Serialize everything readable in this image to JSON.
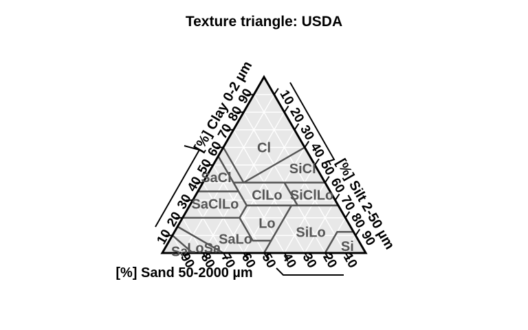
{
  "chart_data": {
    "type": "ternary",
    "title": "Texture triangle: USDA",
    "axes": {
      "clay": {
        "label": "[%] Clay 0-2 µm",
        "ticks": [
          "10",
          "20",
          "30",
          "40",
          "50",
          "60",
          "70",
          "80",
          "90"
        ]
      },
      "silt": {
        "label": "[%] Silt 2-50 µm",
        "ticks": [
          "10",
          "20",
          "30",
          "40",
          "50",
          "60",
          "70",
          "80",
          "90"
        ]
      },
      "sand": {
        "label": "[%] Sand 50-2000 µm",
        "ticks": [
          "10",
          "20",
          "30",
          "40",
          "50",
          "60",
          "70",
          "80",
          "90"
        ]
      }
    },
    "grid": true,
    "grid_step": 10,
    "classes": [
      {
        "label": "Cl",
        "polygon": [
          [
            100,
            0,
            0
          ],
          [
            55,
            45,
            0
          ],
          [
            40,
            45,
            15
          ],
          [
            40,
            40,
            20
          ],
          [
            60,
            40,
            0
          ]
        ]
      },
      {
        "label": "SiCl",
        "polygon": [
          [
            60,
            0,
            40
          ],
          [
            40,
            0,
            60
          ],
          [
            40,
            40,
            20
          ]
        ]
      },
      {
        "label": "SaCl",
        "polygon": [
          [
            55,
            45,
            0
          ],
          [
            35,
            65,
            0
          ],
          [
            35,
            45,
            20
          ]
        ]
      },
      {
        "label": "SiClLo",
        "polygon": [
          [
            40,
            0,
            60
          ],
          [
            27,
            0,
            73
          ],
          [
            27,
            20,
            53
          ],
          [
            40,
            20,
            40
          ]
        ]
      },
      {
        "label": "ClLo",
        "polygon": [
          [
            40,
            20,
            40
          ],
          [
            27,
            20,
            53
          ],
          [
            27,
            45,
            28
          ],
          [
            40,
            45,
            15
          ]
        ]
      },
      {
        "label": "SaClLo",
        "polygon": [
          [
            35,
            65,
            0
          ],
          [
            20,
            80,
            0
          ],
          [
            20,
            52,
            28
          ],
          [
            27,
            45,
            28
          ],
          [
            35,
            45,
            20
          ]
        ]
      },
      {
        "label": "Lo",
        "polygon": [
          [
            27,
            45,
            28
          ],
          [
            27,
            23,
            50
          ],
          [
            7,
            43,
            50
          ],
          [
            7,
            52,
            41
          ],
          [
            20,
            52,
            28
          ]
        ]
      },
      {
        "label": "SiLo",
        "polygon": [
          [
            27,
            23,
            50
          ],
          [
            27,
            0,
            73
          ],
          [
            12,
            0,
            88
          ],
          [
            12,
            8,
            80
          ],
          [
            0,
            20,
            80
          ],
          [
            0,
            50,
            50
          ],
          [
            7,
            43,
            50
          ]
        ]
      },
      {
        "label": "Si",
        "polygon": [
          [
            12,
            8,
            80
          ],
          [
            12,
            0,
            88
          ],
          [
            0,
            0,
            100
          ],
          [
            0,
            20,
            80
          ]
        ]
      },
      {
        "label": "SaLo",
        "polygon": [
          [
            20,
            80,
            0
          ],
          [
            15,
            85,
            0
          ],
          [
            0,
            70,
            30
          ],
          [
            0,
            50,
            50
          ],
          [
            7,
            43,
            50
          ],
          [
            7,
            52,
            41
          ],
          [
            20,
            52,
            28
          ]
        ]
      },
      {
        "label": "LoSa",
        "polygon": [
          [
            15,
            85,
            0
          ],
          [
            10,
            90,
            0
          ],
          [
            0,
            85,
            15
          ],
          [
            0,
            70,
            30
          ]
        ]
      },
      {
        "label": "Sa",
        "polygon": [
          [
            10,
            90,
            0
          ],
          [
            0,
            100,
            0
          ],
          [
            0,
            85,
            15
          ]
        ]
      }
    ],
    "label_positions": [
      {
        "label": "Cl",
        "clay": 60,
        "sand": 20
      },
      {
        "label": "SiCl",
        "clay": 48,
        "sand": 7
      },
      {
        "label": "SaCl",
        "clay": 43,
        "sand": 52
      },
      {
        "label": "SiClLo",
        "clay": 33,
        "sand": 10
      },
      {
        "label": "ClLo",
        "clay": 33,
        "sand": 32
      },
      {
        "label": "SaClLo",
        "clay": 28,
        "sand": 60
      },
      {
        "label": "Lo",
        "clay": 17,
        "sand": 40
      },
      {
        "label": "SiLo",
        "clay": 12,
        "sand": 21
      },
      {
        "label": "Si",
        "clay": 4,
        "sand": 7
      },
      {
        "label": "SaLo",
        "clay": 8,
        "sand": 60
      },
      {
        "label": "LoSa",
        "clay": 3,
        "sand": 78
      },
      {
        "label": "Sa",
        "clay": 1,
        "sand": 91
      }
    ],
    "colors": {
      "background": "#e8e8e8",
      "grid": "#ffffff",
      "class_border": "#555555",
      "class_label": "#555555",
      "frame": "#000000"
    }
  }
}
